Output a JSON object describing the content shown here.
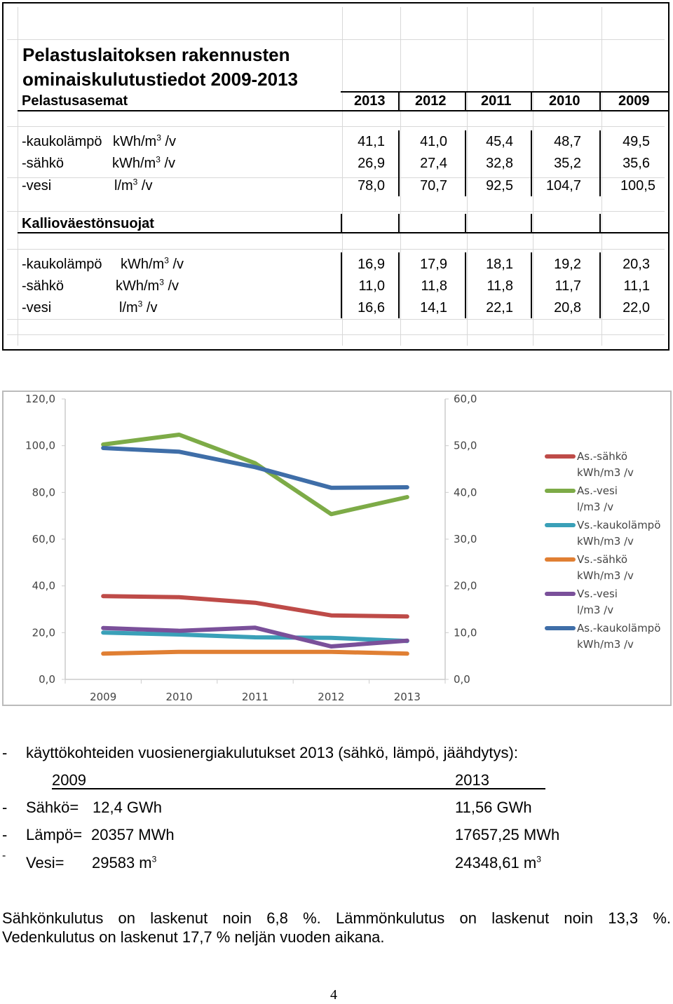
{
  "table": {
    "title_line1": "Pelastuslaitoksen rakennusten",
    "title_line2": "ominaiskulutustiedot  2009-2013",
    "years": [
      "2013",
      "2012",
      "2011",
      "2010",
      "2009"
    ],
    "section1": {
      "label": "Pelastusasemat",
      "rows": [
        {
          "name": "-kaukolämpö",
          "unit_pre": "kWh/m",
          "unit_sup": "3",
          "unit_post": " /v",
          "values": [
            "41,1",
            "41,0",
            "45,4",
            "48,7",
            "49,5"
          ]
        },
        {
          "name": "-sähkö",
          "unit_pre": "kWh/m",
          "unit_sup": "3",
          "unit_post": " /v",
          "values": [
            "26,9",
            "27,4",
            "32,8",
            "35,2",
            "35,6"
          ]
        },
        {
          "name": "-vesi",
          "unit_pre": "l/m",
          "unit_sup": "3",
          "unit_post": " /v",
          "values": [
            "78,0",
            "70,7",
            "92,5",
            "104,7",
            "100,5"
          ]
        }
      ]
    },
    "section2": {
      "label": "Kallioväestönsuojat",
      "rows": [
        {
          "name": "-kaukolämpö",
          "unit_pre": "kWh/m",
          "unit_sup": "3",
          "unit_post": " /v",
          "values": [
            "16,9",
            "17,9",
            "18,1",
            "19,2",
            "20,3"
          ]
        },
        {
          "name": "-sähkö",
          "unit_pre": "kWh/m",
          "unit_sup": "3",
          "unit_post": " /v",
          "values": [
            "11,0",
            "11,8",
            "11,8",
            "11,7",
            "11,1"
          ]
        },
        {
          "name": "-vesi",
          "unit_pre": "l/m",
          "unit_sup": "3",
          "unit_post": " /v",
          "values": [
            "16,6",
            "14,1",
            "22,1",
            "20,8",
            "22,0"
          ]
        }
      ]
    }
  },
  "chart_data": {
    "type": "line",
    "categories": [
      "2009",
      "2010",
      "2011",
      "2012",
      "2013"
    ],
    "y_left": {
      "min": 0,
      "max": 120,
      "ticks": [
        "0,0",
        "20,0",
        "40,0",
        "60,0",
        "80,0",
        "100,0",
        "120,0"
      ]
    },
    "y_right": {
      "min": 0,
      "max": 60,
      "ticks": [
        "0,0",
        "10,0",
        "20,0",
        "30,0",
        "40,0",
        "50,0",
        "60,0"
      ]
    },
    "series": [
      {
        "name": "As.-sähkö",
        "unit": "kWh/m3 /v",
        "color": "#be4b48",
        "axis": "left",
        "values": [
          35.6,
          35.2,
          32.8,
          27.4,
          26.9
        ]
      },
      {
        "name": "As.-vesi",
        "unit": "l/m3 /v",
        "color": "#7dab47",
        "axis": "left",
        "values": [
          100.5,
          104.7,
          92.5,
          70.7,
          78.0
        ]
      },
      {
        "name": "Vs.-kaukolämpö",
        "unit": "kWh/m3 /v",
        "color": "#3aa0b8",
        "axis": "right",
        "values": [
          10.0,
          9.6,
          9.0,
          8.9,
          8.2
        ]
      },
      {
        "name": "Vs.-sähkö",
        "unit": "kWh/m3 /v",
        "color": "#e07f33",
        "axis": "right",
        "values": [
          5.5,
          5.9,
          5.9,
          5.9,
          5.5
        ]
      },
      {
        "name": "Vs.-vesi",
        "unit": "l/m3 /v",
        "color": "#7a509a",
        "axis": "right",
        "values": [
          11.0,
          10.4,
          11.05,
          7.05,
          8.3
        ]
      },
      {
        "name": "As.-kaukolämpö",
        "unit": "kWh/m3 /v",
        "color": "#3f6ea8",
        "axis": "left",
        "values": [
          99.0,
          97.4,
          90.8,
          82.0,
          82.2
        ]
      }
    ]
  },
  "summary": {
    "intro_dash": "-",
    "intro": "käyttökohteiden vuosienergiakulutukset 2013 (sähkö, lämpö, jäähdytys):",
    "col1": "2009",
    "col2": "2013",
    "rows": [
      {
        "dash": "-",
        "label": "Sähkö=",
        "v2009": "12,4 GWh",
        "v2013": "11,56 GWh"
      },
      {
        "dash": "-",
        "label": "Lämpö=",
        "v2009": "20357 MWh",
        "v2013": "17657,25 MWh"
      }
    ],
    "vesi": {
      "dash": "-",
      "label": "Vesi=",
      "v2009_pre": "29583 m",
      "v2013_pre": "24348,61 m",
      "sup": "3"
    }
  },
  "paragraph": {
    "line1": "Sähkönkulutus on laskenut noin 6,8 %. Lämmönkulutus on laskenut noin 13,3 %.",
    "line2": "Vedenkulutus on laskenut 17,7 % neljän vuoden aikana."
  },
  "page_number": "4"
}
